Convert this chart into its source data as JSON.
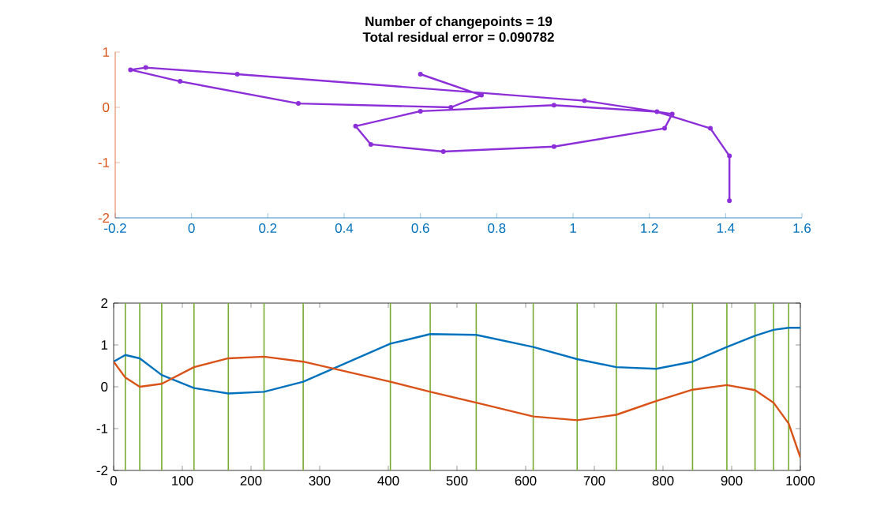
{
  "chart_data": [
    {
      "type": "line",
      "title": "Number of changepoints = 19",
      "subtitle": "Total residual error = 0.090782",
      "marker": "circle",
      "xlim": [
        -0.2,
        1.6
      ],
      "xticks": [
        -0.2,
        0,
        0.2,
        0.4,
        0.6,
        0.8,
        1,
        1.2,
        1.4,
        1.6
      ],
      "ylim": [
        -2,
        1
      ],
      "yticks": [
        -2,
        -1,
        0,
        1
      ],
      "x": [
        0.6,
        0.76,
        0.68,
        0.28,
        -0.03,
        -0.16,
        -0.12,
        0.12,
        1.03,
        1.26,
        1.24,
        0.95,
        0.66,
        0.47,
        0.43,
        0.6,
        0.95,
        1.22,
        1.36,
        1.41,
        1.41
      ],
      "series": [
        {
          "color": "#8c2fd8",
          "values": [
            0.6,
            0.22,
            0,
            0.07,
            0.47,
            0.68,
            0.72,
            0.6,
            0.12,
            -0.12,
            -0.38,
            -0.71,
            -0.8,
            -0.67,
            -0.34,
            -0.07,
            0.04,
            -0.08,
            -0.38,
            -0.88,
            -1.69
          ]
        }
      ]
    },
    {
      "type": "line",
      "xlim": [
        0,
        1000
      ],
      "xticks": [
        0,
        100,
        200,
        300,
        400,
        500,
        600,
        700,
        800,
        900,
        1000
      ],
      "ylim": [
        -2,
        2
      ],
      "yticks": [
        -2,
        -1,
        0,
        1,
        2
      ],
      "x": [
        0,
        17,
        38,
        70,
        117,
        167,
        219,
        276,
        403,
        461,
        528,
        611,
        675,
        732,
        790,
        843,
        893,
        934,
        961,
        983,
        1000
      ],
      "series": [
        {
          "color": "#0072bd",
          "values": [
            0.6,
            0.76,
            0.68,
            0.28,
            -0.03,
            -0.16,
            -0.12,
            0.12,
            1.03,
            1.26,
            1.24,
            0.95,
            0.66,
            0.47,
            0.43,
            0.6,
            0.95,
            1.22,
            1.36,
            1.41,
            1.41
          ]
        },
        {
          "color": "#d95319",
          "values": [
            0.6,
            0.22,
            0,
            0.07,
            0.47,
            0.68,
            0.72,
            0.6,
            0.12,
            -0.12,
            -0.38,
            -0.71,
            -0.8,
            -0.67,
            -0.34,
            -0.07,
            0.04,
            -0.08,
            -0.38,
            -0.88,
            -1.69
          ]
        }
      ],
      "ref_lines": [
        {
          "axis": "x",
          "value": 17,
          "color": "#77ac30"
        },
        {
          "axis": "x",
          "value": 38,
          "color": "#77ac30"
        },
        {
          "axis": "x",
          "value": 70,
          "color": "#77ac30"
        },
        {
          "axis": "x",
          "value": 117,
          "color": "#77ac30"
        },
        {
          "axis": "x",
          "value": 167,
          "color": "#77ac30"
        },
        {
          "axis": "x",
          "value": 219,
          "color": "#77ac30"
        },
        {
          "axis": "x",
          "value": 276,
          "color": "#77ac30"
        },
        {
          "axis": "x",
          "value": 403,
          "color": "#77ac30"
        },
        {
          "axis": "x",
          "value": 461,
          "color": "#77ac30"
        },
        {
          "axis": "x",
          "value": 528,
          "color": "#77ac30"
        },
        {
          "axis": "x",
          "value": 611,
          "color": "#77ac30"
        },
        {
          "axis": "x",
          "value": 675,
          "color": "#77ac30"
        },
        {
          "axis": "x",
          "value": 732,
          "color": "#77ac30"
        },
        {
          "axis": "x",
          "value": 790,
          "color": "#77ac30"
        },
        {
          "axis": "x",
          "value": 843,
          "color": "#77ac30"
        },
        {
          "axis": "x",
          "value": 893,
          "color": "#77ac30"
        },
        {
          "axis": "x",
          "value": 934,
          "color": "#77ac30"
        },
        {
          "axis": "x",
          "value": 961,
          "color": "#77ac30"
        },
        {
          "axis": "x",
          "value": 983,
          "color": "#77ac30"
        }
      ]
    }
  ]
}
